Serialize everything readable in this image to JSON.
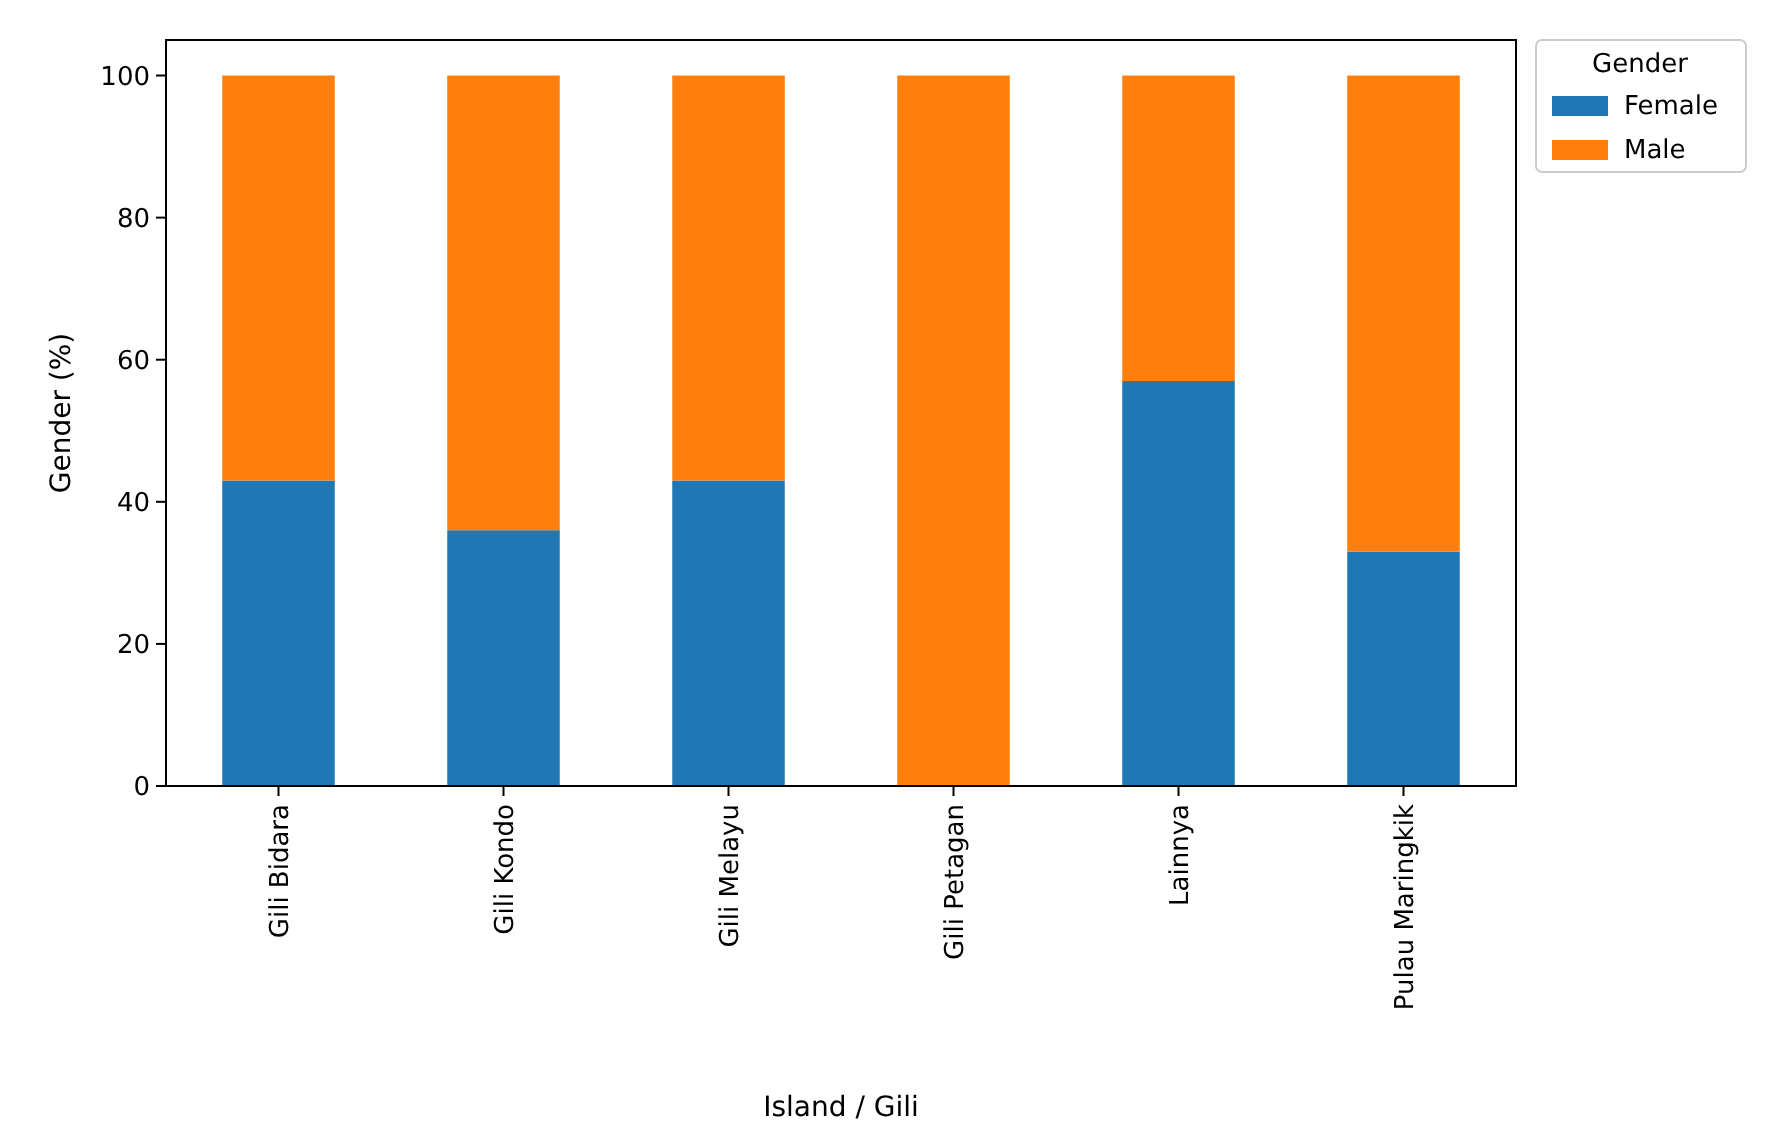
{
  "chart_data": {
    "type": "bar",
    "stacked": true,
    "xlabel": "Island / Gili",
    "ylabel": "Gender (%)",
    "legend_title": "Gender",
    "legend": "top right",
    "categories": [
      "Gili Bidara",
      "Gili Kondo",
      "Gili Melayu",
      "Gili Petagan",
      "Lainnya",
      "Pulau Maringkik"
    ],
    "series": [
      {
        "name": "Female",
        "color": "#1f77b4",
        "values": [
          43,
          36,
          43,
          0,
          57,
          33
        ]
      },
      {
        "name": "Male",
        "color": "#ff7f0e",
        "values": [
          57,
          64,
          57,
          100,
          43,
          67
        ]
      }
    ],
    "ylim": [
      0,
      105
    ],
    "yticks": [
      0,
      20,
      40,
      60,
      80,
      100
    ]
  }
}
